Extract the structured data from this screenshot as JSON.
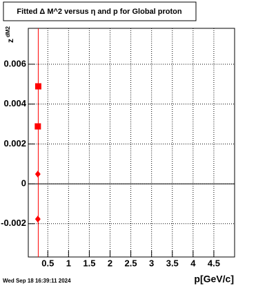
{
  "chart_data": {
    "type": "scatter",
    "title": "Fitted Δ M^2 versus η and p for Global proton",
    "x_label": "p[GeV/c]",
    "y_label": {
      "main": "z",
      "sub": "dM2"
    },
    "timestamp": "Wed Sep 18 16:39:11 2024",
    "xlim": [
      0.03,
      5
    ],
    "xticks": [
      0.5,
      1,
      1.5,
      2,
      2.5,
      3,
      3.5,
      4,
      4.5
    ],
    "ylim": [
      -0.00367,
      0.0078
    ],
    "yticks": [
      -0.002,
      0,
      0.002,
      0.004,
      0.006
    ],
    "grid": true,
    "series": [
      {
        "marker": "square",
        "color": "#ff0000",
        "x": [
          0.27,
          0.26
        ],
        "values": [
          0.00489,
          0.00288
        ]
      },
      {
        "marker": "diamond",
        "color": "#ff0000",
        "x": [
          0.26,
          0.26
        ],
        "values": [
          0.00049,
          -0.00177
        ]
      }
    ]
  }
}
